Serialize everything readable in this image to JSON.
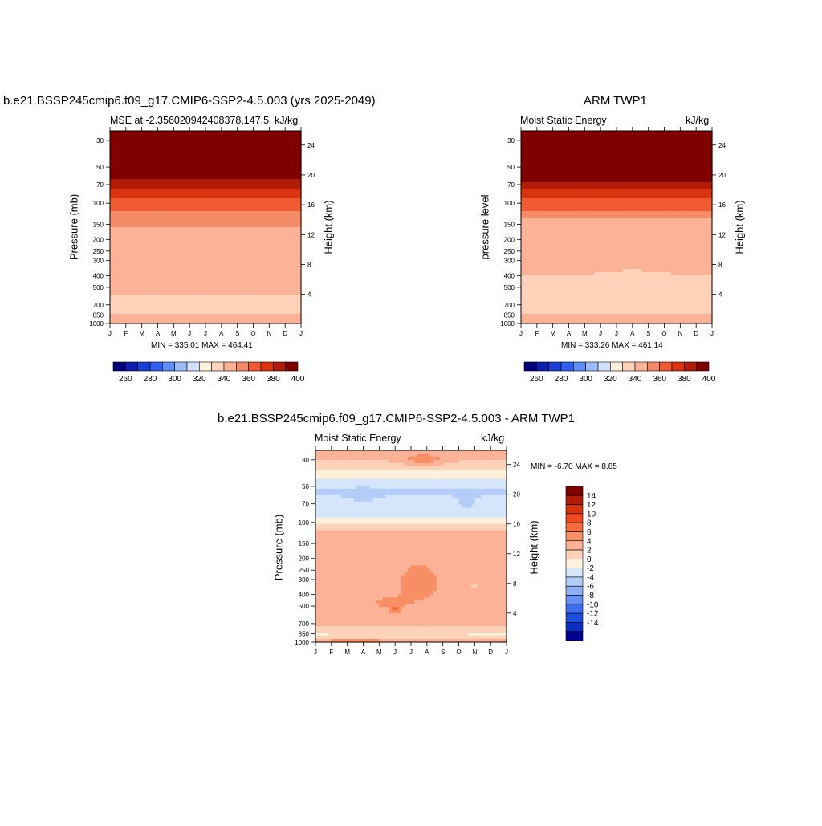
{
  "months": [
    "J",
    "F",
    "M",
    "A",
    "M",
    "J",
    "J",
    "A",
    "S",
    "O",
    "N",
    "D",
    "J"
  ],
  "pressure_ticks": [
    "30",
    "50",
    "70",
    "100",
    "150",
    "200",
    "250",
    "300",
    "400",
    "500",
    "700",
    "850",
    "1000"
  ],
  "pressure_tick_values": [
    30,
    50,
    70,
    100,
    150,
    200,
    250,
    300,
    400,
    500,
    700,
    850,
    1000
  ],
  "height_ticks": [
    "4",
    "8",
    "12",
    "16",
    "20",
    "24"
  ],
  "height_tick_values": [
    4,
    8,
    12,
    16,
    20,
    24
  ],
  "panels": {
    "model": {
      "title": "b.e21.BSSP245cmip6.f09_g17.CMIP6-SSP2-4.5.003 (yrs 2025-2049)",
      "left_string": "MSE at -2.356020942408378,147.5",
      "right_string": "kJ/kg",
      "ylabel": "Pressure (mb)",
      "ylabel_right": "Height (km)",
      "minmax": "MIN = 335.01 MAX = 464.41"
    },
    "obs": {
      "title": "ARM TWP1",
      "left_string": "Moist Static Energy",
      "right_string": "kJ/kg",
      "ylabel": "pressure level",
      "ylabel_right": "Height (km)",
      "minmax": "MIN = 333.26 MAX = 461.14"
    },
    "diff": {
      "title": "b.e21.BSSP245cmip6.f09_g17.CMIP6-SSP2-4.5.003 - ARM TWP1",
      "left_string": "Moist Static Energy",
      "right_string": "kJ/kg",
      "ylabel": "Pressure (mb)",
      "ylabel_right": "Height (km)",
      "minmax": "MIN =  -6.70 MAX =   8.85"
    }
  },
  "colorbars": {
    "abs_labels": [
      "260",
      "280",
      "300",
      "320",
      "340",
      "360",
      "380",
      "400"
    ],
    "abs_colors": [
      "#00007a",
      "#0a1fb0",
      "#1a3fd6",
      "#2f5ef0",
      "#5b8ef5",
      "#9bbcf8",
      "#cfe0fb",
      "#fff0dc",
      "#fdd2b8",
      "#fbb296",
      "#f58b66",
      "#ef5a32",
      "#d9340f",
      "#b01c05",
      "#800000"
    ],
    "diff_labels": [
      "14",
      "12",
      "10",
      "8",
      "6",
      "4",
      "2",
      "0",
      "-2",
      "-4",
      "-6",
      "-8",
      "-10",
      "-12",
      "-14"
    ],
    "diff_colors": [
      "#800000",
      "#b01c05",
      "#d9340f",
      "#ef4a20",
      "#f56c40",
      "#f88f65",
      "#fbb296",
      "#fdd2b8",
      "#fff0dc",
      "#d5e5fb",
      "#b3cdf8",
      "#8eb0f5",
      "#6690f2",
      "#3d6ef0",
      "#1a4fe0",
      "#0b30c0",
      "#000090"
    ]
  },
  "chart_data": [
    {
      "type": "heatmap",
      "title": "b.e21.BSSP245cmip6.f09_g17.CMIP6-SSP2-4.5.003 (yrs 2025-2049)",
      "variable": "MSE",
      "units": "kJ/kg",
      "xlabel": "",
      "ylabel": "Pressure (mb)",
      "ylabel_right": "Height (km)",
      "x": [
        "J",
        "F",
        "M",
        "A",
        "M",
        "J",
        "J",
        "A",
        "S",
        "O",
        "N",
        "D",
        "J"
      ],
      "y_log_pressure": true,
      "ylim": [
        1000,
        25
      ],
      "min": 335.01,
      "max": 464.41,
      "contour_levels": [
        260,
        270,
        280,
        290,
        300,
        310,
        320,
        330,
        340,
        350,
        360,
        370,
        380,
        390,
        400
      ],
      "profile_by_pressure_approx": [
        {
          "pressure": 30,
          "value": 420
        },
        {
          "pressure": 50,
          "value": 395
        },
        {
          "pressure": 60,
          "value": 385
        },
        {
          "pressure": 70,
          "value": 375
        },
        {
          "pressure": 85,
          "value": 365
        },
        {
          "pressure": 110,
          "value": 355
        },
        {
          "pressure": 150,
          "value": 345
        },
        {
          "pressure": 300,
          "value": 345
        },
        {
          "pressure": 550,
          "value": 337
        },
        {
          "pressure": 800,
          "value": 337
        },
        {
          "pressure": 950,
          "value": 348
        }
      ]
    },
    {
      "type": "heatmap",
      "title": "ARM TWP1",
      "variable": "Moist Static Energy",
      "units": "kJ/kg",
      "xlabel": "",
      "ylabel": "pressure level",
      "ylabel_right": "Height (km)",
      "x": [
        "J",
        "F",
        "M",
        "A",
        "M",
        "J",
        "J",
        "A",
        "S",
        "O",
        "N",
        "D",
        "J"
      ],
      "y_log_pressure": true,
      "ylim": [
        1000,
        25
      ],
      "min": 333.26,
      "max": 461.14,
      "contour_levels": [
        260,
        270,
        280,
        290,
        300,
        310,
        320,
        330,
        340,
        350,
        360,
        370,
        380,
        390,
        400
      ],
      "profile_by_pressure_approx": [
        {
          "pressure": 30,
          "value": 420
        },
        {
          "pressure": 50,
          "value": 395
        },
        {
          "pressure": 70,
          "value": 375
        },
        {
          "pressure": 100,
          "value": 355
        },
        {
          "pressure": 130,
          "value": 345
        },
        {
          "pressure": 350,
          "value": 345
        },
        {
          "pressure": 600,
          "value": 337
        },
        {
          "pressure": 950,
          "value": 348
        }
      ]
    },
    {
      "type": "heatmap",
      "title": "b.e21.BSSP245cmip6.f09_g17.CMIP6-SSP2-4.5.003 - ARM TWP1",
      "variable": "Moist Static Energy",
      "units": "kJ/kg",
      "xlabel": "",
      "ylabel": "Pressure (mb)",
      "ylabel_right": "Height (km)",
      "x": [
        "J",
        "F",
        "M",
        "A",
        "M",
        "J",
        "J",
        "A",
        "S",
        "O",
        "N",
        "D",
        "J"
      ],
      "y_log_pressure": true,
      "ylim": [
        1000,
        25
      ],
      "min": -6.7,
      "max": 8.85,
      "contour_levels": [
        -14,
        -12,
        -10,
        -8,
        -6,
        -4,
        -2,
        0,
        2,
        4,
        6,
        8,
        10,
        12,
        14
      ],
      "profile_by_pressure_approx": [
        {
          "pressure": 28,
          "value": 2
        },
        {
          "pressure": 40,
          "value": -1
        },
        {
          "pressure": 55,
          "value": -4
        },
        {
          "pressure": 75,
          "value": -3
        },
        {
          "pressure": 100,
          "value": -1
        },
        {
          "pressure": 115,
          "value": 1
        },
        {
          "pressure": 300,
          "value": 3
        },
        {
          "pressure": 500,
          "value": 4
        },
        {
          "pressure": 800,
          "value": 1
        },
        {
          "pressure": 950,
          "value": 3
        }
      ]
    }
  ]
}
